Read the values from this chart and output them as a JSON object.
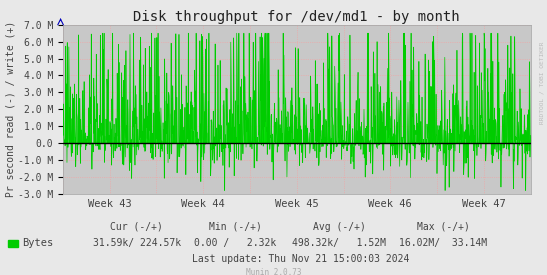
{
  "title": "Disk throughput for /dev/md1 - by month",
  "ylabel": "Pr second read (-) / write (+)",
  "background_color": "#e8e8e8",
  "plot_bg_color": "#c8c8c8",
  "grid_color": "#ff9999",
  "line_color": "#00cc00",
  "fill_color": "#00dd00",
  "zero_line_color": "#000000",
  "ylim": [
    -3000000,
    7000000
  ],
  "yticks": [
    -3000000,
    -2000000,
    -1000000,
    0,
    1000000,
    2000000,
    3000000,
    4000000,
    5000000,
    6000000,
    7000000
  ],
  "ytick_labels": [
    "-3.0 M",
    "-2.0 M",
    "-1.0 M",
    "0.0",
    "1.0 M",
    "2.0 M",
    "3.0 M",
    "4.0 M",
    "5.0 M",
    "6.0 M",
    "7.0 M"
  ],
  "week_labels": [
    "Week 43",
    "Week 44",
    "Week 45",
    "Week 46",
    "Week 47"
  ],
  "legend_label": "Bytes",
  "legend_color": "#00cc00",
  "footer_row1": [
    "Cur (-/+)",
    "Min (-/+)",
    "Avg (-/+)",
    "Max (-/+)"
  ],
  "footer_row2_bytes": "Bytes",
  "footer_row2_vals": [
    "31.59k/ 224.57k",
    "0.00 /   2.32k",
    "498.32k/   1.52M",
    "16.02M/  33.14M"
  ],
  "footer_lastupdate": "Last update: Thu Nov 21 15:00:03 2024",
  "munin_version": "Munin 2.0.73",
  "rrdtool_label": "RRDTOOL / TOBI OETIKER",
  "title_fontsize": 10,
  "axis_fontsize": 7,
  "footer_fontsize": 7,
  "num_points": 1500,
  "arrow_color": "#0000bb"
}
